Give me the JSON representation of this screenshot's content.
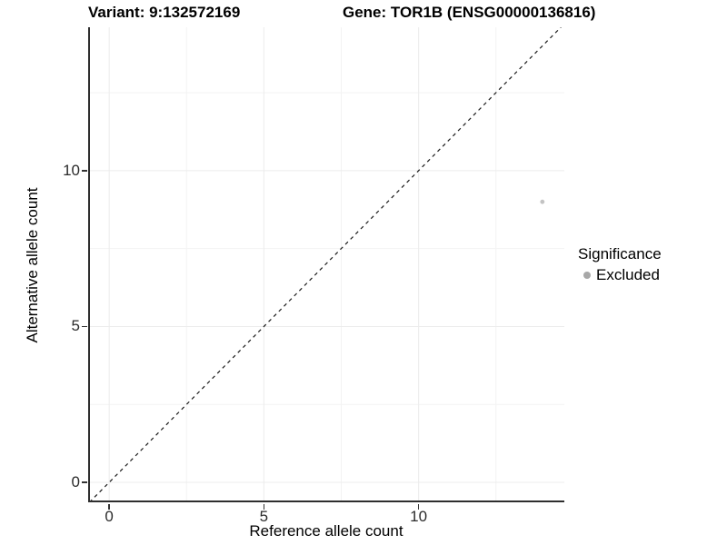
{
  "titles": {
    "variant": "Variant: 9:132572169",
    "gene": "Gene: TOR1B (ENSG00000136816)"
  },
  "chart_data": {
    "type": "scatter",
    "title_left": "Variant: 9:132572169",
    "title_right": "Gene: TOR1B (ENSG00000136816)",
    "xlabel": "Reference allele count",
    "ylabel": "Alternative allele count",
    "xlim": [
      -0.68,
      14.71
    ],
    "ylim": [
      -0.64,
      14.6
    ],
    "x_major_ticks": [
      0,
      5,
      10
    ],
    "y_major_ticks": [
      0,
      5,
      10
    ],
    "x_minor_ticks": [
      2.5,
      7.5,
      12.5
    ],
    "y_minor_ticks": [
      2.5,
      7.5,
      12.5
    ],
    "grid": true,
    "identity_line": {
      "equation": "y=x",
      "style": "dashed"
    },
    "series": [
      {
        "name": "Excluded",
        "points": [
          {
            "x": 14,
            "y": 9
          }
        ]
      }
    ],
    "legend": {
      "title": "Significance",
      "position": "right",
      "items": [
        {
          "label": "Excluded",
          "color": "#a8a8a8"
        }
      ]
    }
  },
  "colors": {
    "background": "#ffffff",
    "grid_major": "#ececec",
    "grid_minor": "#f3f3f3",
    "axis_line": "#2e2e2e",
    "tick_mark": "#333333",
    "tick_label": "#2b2b2b",
    "identity_line": "#1a1a1a",
    "point": "#c3c3c3",
    "legend_point": "#a8a8a8"
  }
}
